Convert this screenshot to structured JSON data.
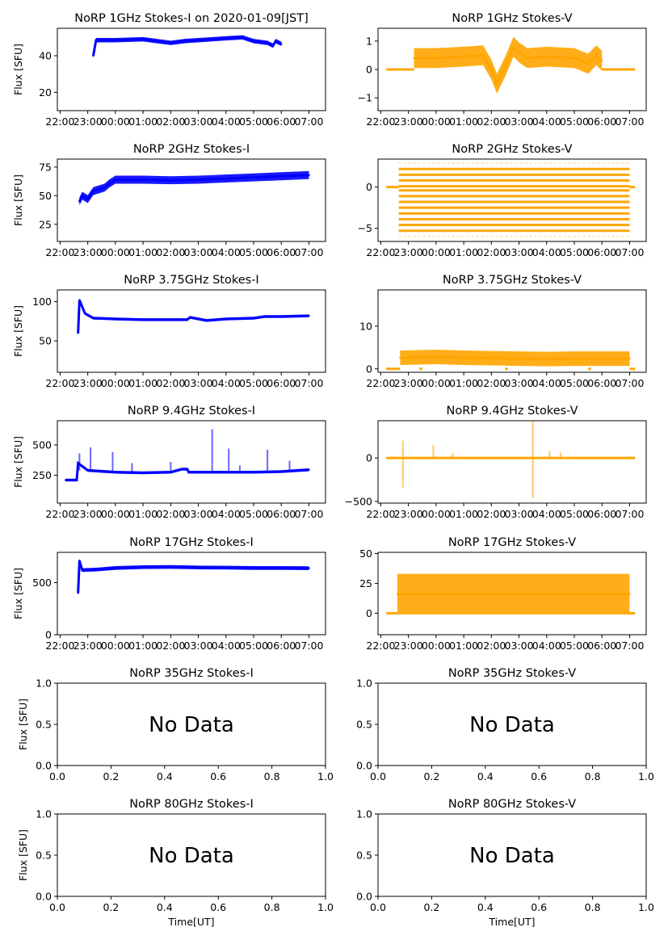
{
  "figure": {
    "date_label": "2020-01-09[JST]",
    "time_ticks": [
      "22:00",
      "23:00",
      "00:00",
      "01:00",
      "02:00",
      "03:00",
      "04:00",
      "05:00",
      "06:00",
      "07:00"
    ],
    "no_data_ticks": [
      "0.0",
      "0.2",
      "0.4",
      "0.6",
      "0.8",
      "1.0"
    ],
    "no_data_text": "No Data",
    "ylabel": "Flux [SFU]",
    "xlabel": "Time[UT]",
    "colors": {
      "stokes_i": "#0000ff",
      "stokes_v": "#ffa500"
    }
  },
  "chart_data": [
    {
      "id": "1GHz-I",
      "type": "scatter",
      "title": "NoRP 1GHz Stokes-I on 2020-01-09[JST]",
      "ylabel": "Flux [SFU]",
      "xlabel": "",
      "ylim": [
        10,
        55
      ],
      "yticks": [
        20,
        40
      ],
      "xlim_hours": [
        21.9,
        31.6
      ],
      "series": [
        {
          "name": "Stokes-I",
          "color": "#0000ff",
          "points": [
            [
              23.2,
              40
            ],
            [
              23.3,
              48.5
            ],
            [
              24,
              48.5
            ],
            [
              25,
              49
            ],
            [
              26,
              47
            ],
            [
              26.5,
              48
            ],
            [
              27,
              48.5
            ],
            [
              28,
              49.5
            ],
            [
              28.6,
              50
            ],
            [
              29,
              48
            ],
            [
              29.5,
              47
            ],
            [
              29.7,
              45.5
            ],
            [
              29.8,
              48
            ],
            [
              30,
              46.5
            ]
          ],
          "band": 1.2
        }
      ]
    },
    {
      "id": "1GHz-V",
      "type": "scatter",
      "title": "NoRP 1GHz Stokes-V",
      "ylabel": "",
      "xlabel": "",
      "ylim": [
        -1.45,
        1.45
      ],
      "yticks": [
        -1,
        0,
        1
      ],
      "xlim_hours": [
        21.9,
        31.6
      ],
      "series": [
        {
          "name": "Stokes-V",
          "color": "#ffa500",
          "zero_segments": [
            [
              22.2,
              23.2
            ],
            [
              30,
              31.2
            ]
          ],
          "points": [
            [
              23.2,
              0.4
            ],
            [
              24,
              0.4
            ],
            [
              25,
              0.45
            ],
            [
              25.7,
              0.5
            ],
            [
              26,
              0.0
            ],
            [
              26.2,
              -0.5
            ],
            [
              26.5,
              0.1
            ],
            [
              26.8,
              0.8
            ],
            [
              27,
              0.6
            ],
            [
              27.3,
              0.4
            ],
            [
              28,
              0.45
            ],
            [
              29,
              0.4
            ],
            [
              29.5,
              0.2
            ],
            [
              29.8,
              0.5
            ],
            [
              30,
              0.3
            ]
          ],
          "band": 0.35
        }
      ]
    },
    {
      "id": "2GHz-I",
      "type": "scatter",
      "title": "NoRP 2GHz Stokes-I",
      "ylabel": "Flux [SFU]",
      "xlabel": "",
      "ylim": [
        10,
        82
      ],
      "yticks": [
        25,
        50,
        75
      ],
      "xlim_hours": [
        21.9,
        31.6
      ],
      "series": [
        {
          "name": "Stokes-I",
          "color": "#0000ff",
          "points": [
            [
              22.7,
              45
            ],
            [
              22.8,
              50
            ],
            [
              23.0,
              47
            ],
            [
              23.2,
              54
            ],
            [
              23.6,
              57
            ],
            [
              23.8,
              61
            ],
            [
              24,
              64
            ],
            [
              25,
              64
            ],
            [
              26,
              63.5
            ],
            [
              27,
              64
            ],
            [
              28,
              65
            ],
            [
              29,
              66
            ],
            [
              30,
              67
            ],
            [
              31,
              68
            ]
          ],
          "band": 3.5
        }
      ]
    },
    {
      "id": "2GHz-V",
      "type": "scatter",
      "title": "NoRP 2GHz Stokes-V",
      "ylabel": "",
      "xlabel": "",
      "ylim": [
        -6.6,
        3.4
      ],
      "yticks": [
        -5,
        0
      ],
      "xlim_hours": [
        21.9,
        31.6
      ],
      "series": [
        {
          "name": "Stokes-V",
          "color": "#ffa500",
          "zero_segments": [
            [
              22.2,
              22.65
            ],
            [
              31,
              31.2
            ]
          ],
          "levels": [
            2.9,
            2.2,
            1.5,
            0.8,
            0.1,
            -0.4,
            -1.1,
            -1.8,
            -2.5,
            -3.2,
            -3.9,
            -4.6,
            -5.3,
            -6.0
          ],
          "x_range": [
            22.65,
            31.0
          ]
        }
      ]
    },
    {
      "id": "3.75GHz-I",
      "type": "scatter",
      "title": "NoRP 3.75GHz Stokes-I",
      "ylabel": "Flux [SFU]",
      "xlabel": "",
      "ylim": [
        10,
        115
      ],
      "yticks": [
        50,
        100
      ],
      "xlim_hours": [
        21.9,
        31.6
      ],
      "series": [
        {
          "name": "Stokes-I",
          "color": "#0000ff",
          "points": [
            [
              22.65,
              60
            ],
            [
              22.7,
              102
            ],
            [
              22.9,
              85
            ],
            [
              23.2,
              79
            ],
            [
              24,
              78
            ],
            [
              25,
              77
            ],
            [
              26,
              77
            ],
            [
              26.6,
              77
            ],
            [
              26.7,
              80
            ],
            [
              27.3,
              76
            ],
            [
              28,
              78
            ],
            [
              29,
              79
            ],
            [
              29.4,
              81
            ],
            [
              30,
              81
            ],
            [
              31,
              82
            ]
          ],
          "band": 1.8
        }
      ]
    },
    {
      "id": "3.75GHz-V",
      "type": "scatter",
      "title": "NoRP 3.75GHz Stokes-V",
      "ylabel": "",
      "xlabel": "",
      "ylim": [
        -0.8,
        18.5
      ],
      "yticks": [
        0,
        10
      ],
      "xlim_hours": [
        21.9,
        31.6
      ],
      "series": [
        {
          "name": "Stokes-V",
          "color": "#ffa500",
          "zero_segments": [
            [
              22.2,
              22.7
            ],
            [
              23.4,
              23.5
            ],
            [
              26.5,
              26.6
            ],
            [
              29.5,
              29.6
            ],
            [
              31,
              31.2
            ]
          ],
          "points": [
            [
              22.7,
              2.6
            ],
            [
              24,
              2.8
            ],
            [
              25,
              2.6
            ],
            [
              26,
              2.5
            ],
            [
              27,
              2.4
            ],
            [
              28,
              2.3
            ],
            [
              29,
              2.4
            ],
            [
              30,
              2.4
            ],
            [
              31,
              2.4
            ]
          ],
          "band": 1.7
        }
      ]
    },
    {
      "id": "9.4GHz-I",
      "type": "scatter",
      "title": "NoRP 9.4GHz Stokes-I",
      "ylabel": "Flux [SFU]",
      "xlabel": "",
      "ylim": [
        20,
        700
      ],
      "yticks": [
        250,
        500
      ],
      "xlim_hours": [
        21.9,
        31.6
      ],
      "series": [
        {
          "name": "Stokes-I",
          "color": "#0000ff",
          "points": [
            [
              22.2,
              210
            ],
            [
              22.6,
              210
            ],
            [
              22.65,
              350
            ],
            [
              23,
              290
            ],
            [
              24,
              275
            ],
            [
              25,
              270
            ],
            [
              26,
              275
            ],
            [
              26.4,
              300
            ],
            [
              26.6,
              300
            ],
            [
              26.65,
              275
            ],
            [
              27,
              275
            ],
            [
              28,
              275
            ],
            [
              29,
              275
            ],
            [
              30,
              280
            ],
            [
              31,
              295
            ]
          ],
          "band": 12,
          "spikes": [
            [
              22.7,
              430
            ],
            [
              23.1,
              480
            ],
            [
              23.9,
              440
            ],
            [
              24.6,
              350
            ],
            [
              26.0,
              360
            ],
            [
              27.5,
              630
            ],
            [
              28.1,
              470
            ],
            [
              28.5,
              330
            ],
            [
              29.5,
              460
            ],
            [
              30.3,
              370
            ]
          ]
        }
      ]
    },
    {
      "id": "9.4GHz-V",
      "type": "scatter",
      "title": "NoRP 9.4GHz Stokes-V",
      "ylabel": "",
      "xlabel": "",
      "ylim": [
        -520,
        430
      ],
      "yticks": [
        -500,
        0
      ],
      "xlim_hours": [
        21.9,
        31.6
      ],
      "series": [
        {
          "name": "Stokes-V",
          "color": "#ffa500",
          "zero_segments": [
            [
              22.2,
              31.2
            ]
          ],
          "spikes": [
            [
              22.8,
              200
            ],
            [
              22.8,
              -340
            ],
            [
              23.9,
              150
            ],
            [
              24.6,
              60
            ],
            [
              27.5,
              430
            ],
            [
              27.5,
              -460
            ],
            [
              28.1,
              80
            ],
            [
              28.5,
              60
            ]
          ]
        }
      ]
    },
    {
      "id": "17GHz-I",
      "type": "scatter",
      "title": "NoRP 17GHz Stokes-I",
      "ylabel": "Flux [SFU]",
      "xlabel": "",
      "ylim": [
        0,
        790
      ],
      "yticks": [
        0,
        500
      ],
      "xlim_hours": [
        21.9,
        31.6
      ],
      "series": [
        {
          "name": "Stokes-I",
          "color": "#0000ff",
          "points": [
            [
              22.65,
              400
            ],
            [
              22.7,
              710
            ],
            [
              22.8,
              620
            ],
            [
              23.3,
              625
            ],
            [
              24,
              640
            ],
            [
              25,
              648
            ],
            [
              26,
              650
            ],
            [
              27,
              645
            ],
            [
              28,
              643
            ],
            [
              29,
              640
            ],
            [
              30,
              640
            ],
            [
              31,
              638
            ]
          ],
          "band": 18
        }
      ]
    },
    {
      "id": "17GHz-V",
      "type": "scatter",
      "title": "NoRP 17GHz Stokes-V",
      "ylabel": "",
      "xlabel": "",
      "ylim": [
        -18,
        51
      ],
      "yticks": [
        0,
        25,
        50
      ],
      "xlim_hours": [
        21.9,
        31.6
      ],
      "series": [
        {
          "name": "Stokes-V",
          "color": "#ffa500",
          "zero_segments": [
            [
              22.2,
              22.6
            ],
            [
              30.8,
              31.2
            ]
          ],
          "points": [
            [
              22.6,
              16
            ],
            [
              31,
              16
            ]
          ],
          "band": 17
        }
      ]
    },
    {
      "id": "35GHz-I",
      "type": "empty",
      "title": "NoRP 35GHz Stokes-I",
      "ylabel": "Flux [SFU]",
      "xlabel": "",
      "ylim": [
        0,
        1
      ],
      "xlim": [
        0,
        1
      ],
      "yticks": [
        "0.0",
        "0.5",
        "1.0"
      ],
      "annotation": "No Data"
    },
    {
      "id": "35GHz-V",
      "type": "empty",
      "title": "NoRP 35GHz Stokes-V",
      "ylabel": "",
      "xlabel": "",
      "ylim": [
        0,
        1
      ],
      "xlim": [
        0,
        1
      ],
      "yticks": [
        "0.0",
        "0.5",
        "1.0"
      ],
      "annotation": "No Data"
    },
    {
      "id": "80GHz-I",
      "type": "empty",
      "title": "NoRP 80GHz Stokes-I",
      "ylabel": "Flux [SFU]",
      "xlabel": "Time[UT]",
      "ylim": [
        0,
        1
      ],
      "xlim": [
        0,
        1
      ],
      "yticks": [
        "0.0",
        "0.5",
        "1.0"
      ],
      "annotation": "No Data"
    },
    {
      "id": "80GHz-V",
      "type": "empty",
      "title": "NoRP 80GHz Stokes-V",
      "ylabel": "",
      "xlabel": "Time[UT]",
      "ylim": [
        0,
        1
      ],
      "xlim": [
        0,
        1
      ],
      "yticks": [
        "0.0",
        "0.5",
        "1.0"
      ],
      "annotation": "No Data"
    }
  ]
}
